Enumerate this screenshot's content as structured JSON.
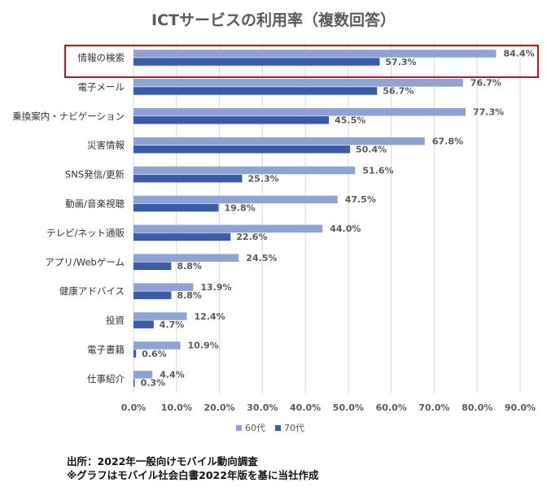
{
  "title": "ICTサービスの利用率（複数回答）",
  "chart_data": {
    "type": "bar",
    "orientation": "horizontal",
    "categories": [
      "情報の検索",
      "電子メール",
      "乗換案内・ナビゲーション",
      "災害情報",
      "SNS発信/更新",
      "動画/音楽視聴",
      "テレビ/ネット通販",
      "アプリ/Webゲーム",
      "健康アドバイス",
      "投資",
      "電子書籍",
      "仕事紹介"
    ],
    "series": [
      {
        "name": "60代",
        "color": "#8FA2D4",
        "values": [
          84.4,
          76.7,
          77.3,
          67.8,
          51.6,
          47.5,
          44.0,
          24.5,
          13.9,
          12.4,
          10.9,
          4.4
        ]
      },
      {
        "name": "70代",
        "color": "#3A5BA8",
        "values": [
          57.3,
          56.7,
          45.5,
          50.4,
          25.3,
          19.8,
          22.6,
          8.8,
          8.8,
          4.7,
          0.6,
          0.3
        ]
      }
    ],
    "xlim": [
      0,
      90
    ],
    "xticks": [
      "0.0%",
      "10.0%",
      "20.0%",
      "30.0%",
      "40.0%",
      "50.0%",
      "60.0%",
      "70.0%",
      "80.0%",
      "90.0%"
    ],
    "value_suffix": "%",
    "grid": true,
    "legend_position": "bottom",
    "highlight_category": "情報の検索",
    "highlight_color": "#B0202A"
  },
  "footnotes": [
    "出所：2022年一般向けモバイル動向調査",
    "※グラフはモバイル社会白書2022年版を基に当社作成"
  ]
}
